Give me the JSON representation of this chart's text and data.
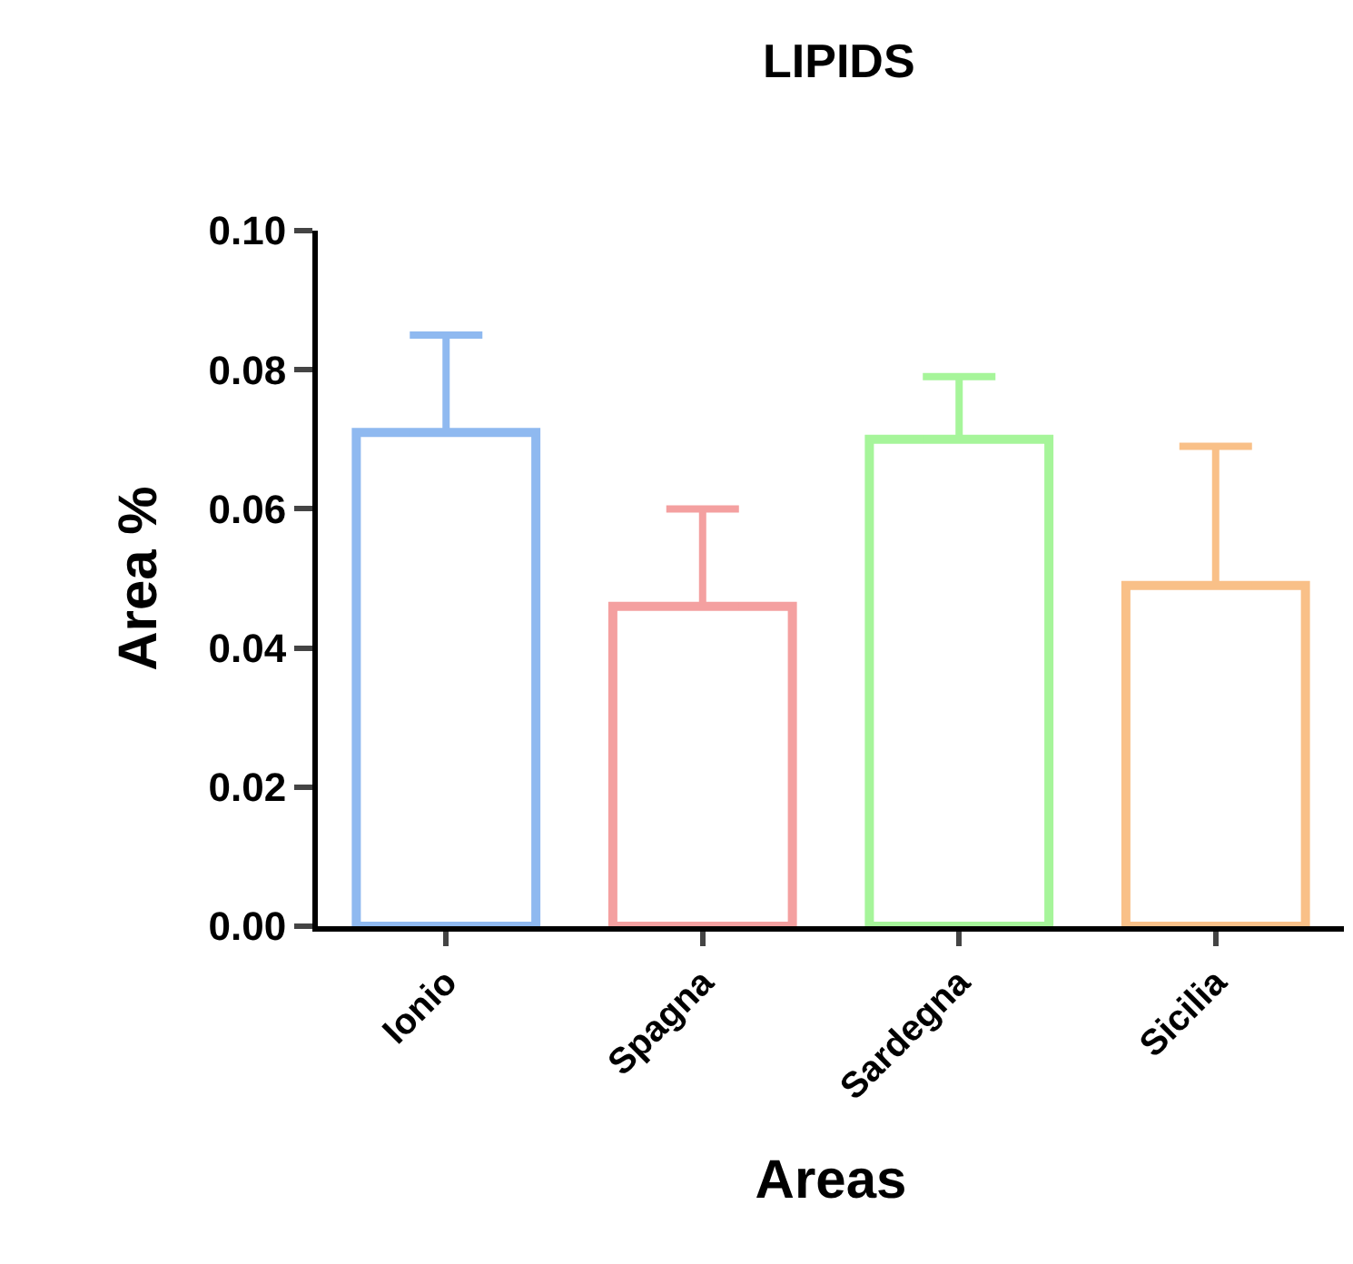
{
  "chart_data": {
    "type": "bar",
    "title": "LIPIDS",
    "xlabel": "Areas",
    "ylabel": "Area %",
    "categories": [
      "Ionio",
      "Spagna",
      "Sardegna",
      "Sicilia"
    ],
    "values": [
      0.071,
      0.046,
      0.07,
      0.049
    ],
    "errors": [
      [
        0.071,
        0.085
      ],
      [
        0.046,
        0.06
      ],
      [
        0.07,
        0.079
      ],
      [
        0.049,
        0.069
      ]
    ],
    "colors": [
      "#8fb9f0",
      "#f4a0a0",
      "#a6f59a",
      "#f9c088"
    ],
    "ylim": [
      0,
      0.1
    ],
    "yticks": [
      {
        "value": 0,
        "label": "0.00"
      },
      {
        "value": 0.02,
        "label": "0.02"
      },
      {
        "value": 0.04,
        "label": "0.04"
      },
      {
        "value": 0.06,
        "label": "0.06"
      },
      {
        "value": 0.08,
        "label": "0.08"
      },
      {
        "value": 0.1,
        "label": "0.10"
      }
    ],
    "grid": false,
    "legend": false
  }
}
